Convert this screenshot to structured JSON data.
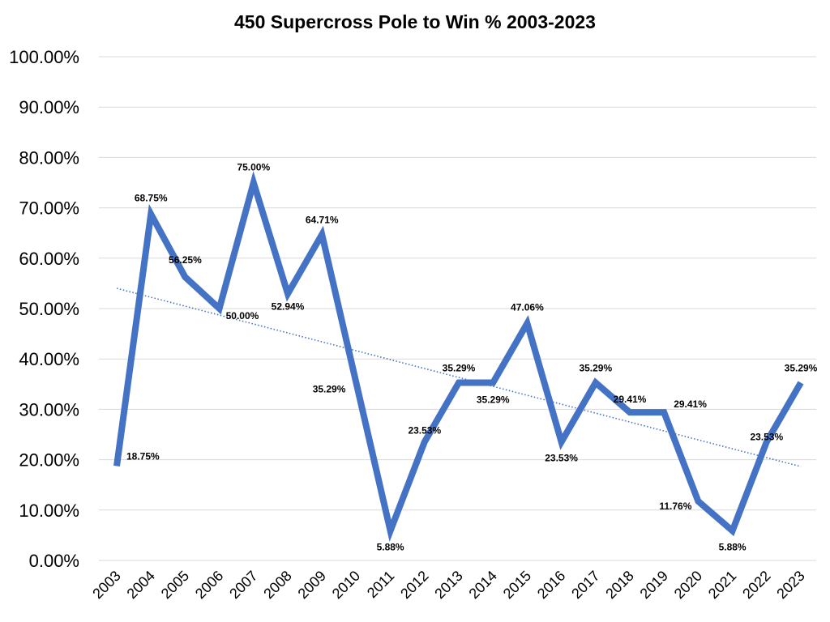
{
  "chart_data": {
    "type": "line",
    "title": "450 Supercross Pole to Win % 2003-2023",
    "xlabel": "",
    "ylabel": "",
    "ylim": [
      0,
      100
    ],
    "yticks": [
      "0.00%",
      "10.00%",
      "20.00%",
      "30.00%",
      "40.00%",
      "50.00%",
      "60.00%",
      "70.00%",
      "80.00%",
      "90.00%",
      "100.00%"
    ],
    "categories": [
      "2003",
      "2004",
      "2005",
      "2006",
      "2007",
      "2008",
      "2009",
      "2010",
      "2011",
      "2012",
      "2013",
      "2014",
      "2015",
      "2016",
      "2017",
      "2018",
      "2019",
      "2020",
      "2021",
      "2022",
      "2023"
    ],
    "series": [
      {
        "name": "Pole to Win %",
        "color": "#4472C4",
        "values": [
          18.75,
          68.75,
          56.25,
          50.0,
          75.0,
          52.94,
          64.71,
          35.29,
          5.88,
          23.53,
          35.29,
          35.29,
          47.06,
          23.53,
          35.29,
          29.41,
          29.41,
          11.76,
          5.88,
          23.53,
          35.29
        ],
        "labels": [
          "18.75%",
          "68.75%",
          "56.25%",
          "50.00%",
          "75.00%",
          "52.94%",
          "64.71%",
          "35.29%",
          "5.88%",
          "23.53%",
          "35.29%",
          "35.29%",
          "47.06%",
          "23.53%",
          "35.29%",
          "29.41%",
          "29.41%",
          "11.76%",
          "5.88%",
          "23.53%",
          "35.29%"
        ]
      }
    ],
    "trendline": {
      "type": "linear",
      "style": "dotted",
      "color": "#4472C4"
    },
    "grid": true,
    "legend": "none"
  }
}
